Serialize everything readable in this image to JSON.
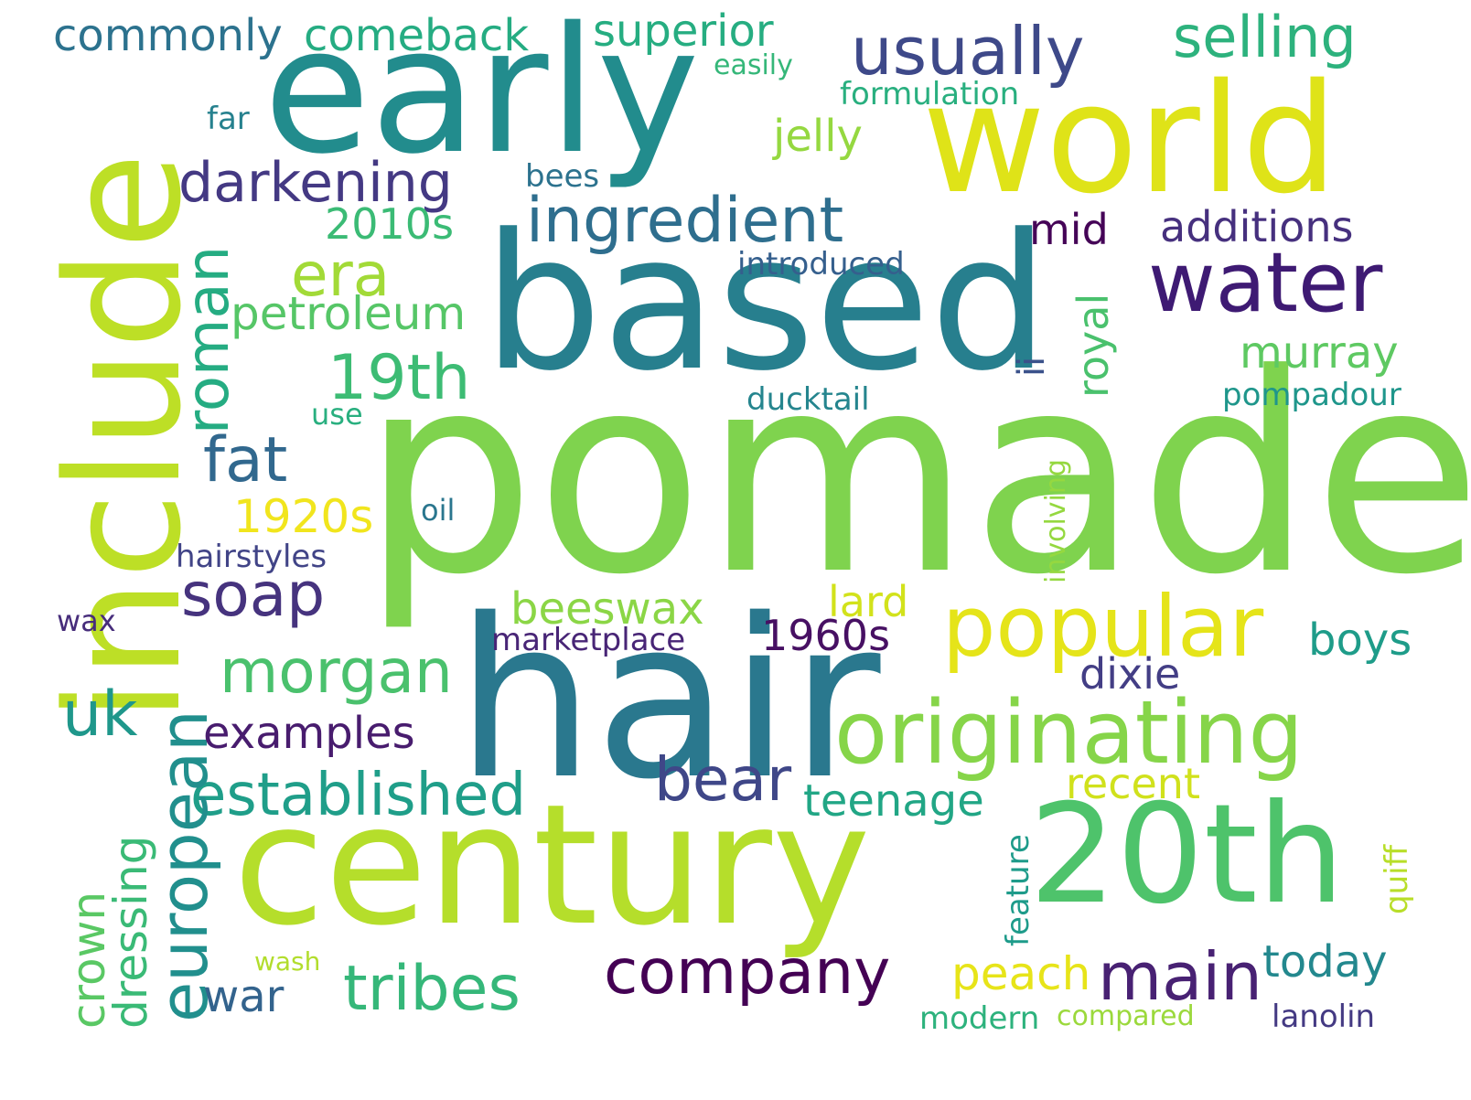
{
  "words": [
    {
      "text": "pomade",
      "color": "#7fd34e"
    },
    {
      "text": "hair",
      "color": "#2a788e"
    },
    {
      "text": "based",
      "color": "#277f8e"
    },
    {
      "text": "early",
      "color": "#228c8d"
    },
    {
      "text": "century",
      "color": "#b5de2b"
    },
    {
      "text": "include",
      "color": "#bddf26"
    },
    {
      "text": "world",
      "color": "#dfe318"
    },
    {
      "text": "20th",
      "color": "#4ec36b"
    },
    {
      "text": "popular",
      "color": "#e5e419"
    },
    {
      "text": "originating",
      "color": "#86d549"
    },
    {
      "text": "water",
      "color": "#3e1a73"
    },
    {
      "text": "usually",
      "color": "#3e4989"
    },
    {
      "text": "ingredient",
      "color": "#2e6e8e"
    },
    {
      "text": "darkening",
      "color": "#443983"
    },
    {
      "text": "company",
      "color": "#440154"
    },
    {
      "text": "main",
      "color": "#482173"
    },
    {
      "text": "tribes",
      "color": "#35b779"
    },
    {
      "text": "established",
      "color": "#1f9e89"
    },
    {
      "text": "morgan",
      "color": "#4ac16d"
    },
    {
      "text": "soap",
      "color": "#46337e"
    },
    {
      "text": "fat",
      "color": "#31688e"
    },
    {
      "text": "19th",
      "color": "#3dbc74"
    },
    {
      "text": "era",
      "color": "#a2da37"
    },
    {
      "text": "roman",
      "color": "#25ac82"
    },
    {
      "text": "european",
      "color": "#218f8d"
    },
    {
      "text": "bear",
      "color": "#3f4788"
    },
    {
      "text": "uk",
      "color": "#1f978b"
    },
    {
      "text": "selling",
      "color": "#2db27d"
    },
    {
      "text": "petroleum",
      "color": "#56c667"
    },
    {
      "text": "examples",
      "color": "#481c6e"
    },
    {
      "text": "teenage",
      "color": "#21a685"
    },
    {
      "text": "murray",
      "color": "#5ec962"
    },
    {
      "text": "1920s",
      "color": "#f1e51d"
    },
    {
      "text": "peach",
      "color": "#e7e419"
    },
    {
      "text": "today",
      "color": "#23888e"
    },
    {
      "text": "war",
      "color": "#33638d"
    },
    {
      "text": "dressing",
      "color": "#3aba76"
    },
    {
      "text": "crown",
      "color": "#5ac864"
    },
    {
      "text": "beeswax",
      "color": "#8bd646"
    },
    {
      "text": "1960s",
      "color": "#471063"
    },
    {
      "text": "additions",
      "color": "#46307e"
    },
    {
      "text": "recent",
      "color": "#d0e11c"
    },
    {
      "text": "boys",
      "color": "#1e9c89"
    },
    {
      "text": "dixie",
      "color": "#433e85"
    },
    {
      "text": "mid",
      "color": "#450457"
    },
    {
      "text": "2010s",
      "color": "#3bbb75"
    },
    {
      "text": "lard",
      "color": "#d2e21b"
    },
    {
      "text": "royal",
      "color": "#4ac16d"
    },
    {
      "text": "jelly",
      "color": "#95d840"
    },
    {
      "text": "superior",
      "color": "#26ad81"
    },
    {
      "text": "comeback",
      "color": "#25ac82"
    },
    {
      "text": "commonly",
      "color": "#2c728e"
    },
    {
      "text": "hairstyles",
      "color": "#414487"
    },
    {
      "text": "marketplace",
      "color": "#482576"
    },
    {
      "text": "formulation",
      "color": "#29af7f"
    },
    {
      "text": "introduced",
      "color": "#355f8d"
    },
    {
      "text": "ducktail",
      "color": "#25858e"
    },
    {
      "text": "pompadour",
      "color": "#1f968b"
    },
    {
      "text": "lanolin",
      "color": "#443a83"
    },
    {
      "text": "modern",
      "color": "#2db27d"
    },
    {
      "text": "compared",
      "color": "#9bd93c"
    },
    {
      "text": "quiff",
      "color": "#b8de29"
    },
    {
      "text": "feature",
      "color": "#1e9b8a"
    },
    {
      "text": "involving",
      "color": "#95d840"
    },
    {
      "text": "ii",
      "color": "#3b528b"
    },
    {
      "text": "bees",
      "color": "#2c728e"
    },
    {
      "text": "far",
      "color": "#26818e"
    },
    {
      "text": "easily",
      "color": "#35b779"
    },
    {
      "text": "use",
      "color": "#29af7f"
    },
    {
      "text": "oil",
      "color": "#2a768e"
    },
    {
      "text": "wax",
      "color": "#472d7b"
    },
    {
      "text": "wash",
      "color": "#b2dd2d"
    }
  ]
}
